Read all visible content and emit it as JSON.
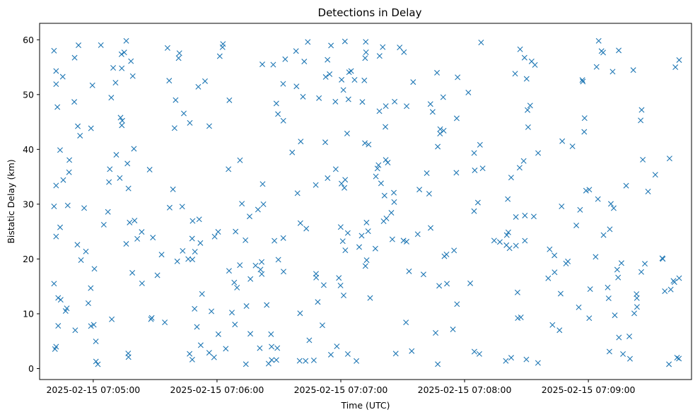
{
  "chart_data": {
    "type": "scatter",
    "title": "Detections in Delay",
    "xlabel": "Time (UTC)",
    "ylabel": "Bistatic Delay (km)",
    "x_type": "datetime",
    "xlim": [
      "2025-02-15 07:04:34",
      "2025-02-15 07:09:50"
    ],
    "ylim": [
      -2,
      63
    ],
    "x_ticks": [
      "2025-02-15 07:05:00",
      "2025-02-15 07:06:00",
      "2025-02-15 07:07:00",
      "2025-02-15 07:08:00",
      "2025-02-15 07:09:00"
    ],
    "y_ticks": [
      0,
      10,
      20,
      30,
      40,
      50,
      60
    ],
    "grid": false,
    "legend": "none",
    "marker": "x",
    "color": "#1f77b4",
    "points_count": 400,
    "sample_points": [
      {
        "t": "2025-02-15 07:04:41",
        "y": 58.0
      },
      {
        "t": "2025-02-15 07:04:42",
        "y": 54.3
      },
      {
        "t": "2025-02-15 07:04:42",
        "y": 51.9
      },
      {
        "t": "2025-02-15 07:04:42",
        "y": 33.4
      },
      {
        "t": "2025-02-15 07:04:41",
        "y": 29.6
      },
      {
        "t": "2025-02-15 07:04:42",
        "y": 24.1
      },
      {
        "t": "2025-02-15 07:04:41",
        "y": 15.5
      },
      {
        "t": "2025-02-15 07:04:43",
        "y": 12.9
      },
      {
        "t": "2025-02-15 07:04:43",
        "y": 7.8
      },
      {
        "t": "2025-02-15 07:04:42",
        "y": 4.0
      },
      {
        "t": "2025-02-15 07:05:16",
        "y": 59.8
      },
      {
        "t": "2025-02-15 07:05:36",
        "y": 58.5
      },
      {
        "t": "2025-02-15 07:06:44",
        "y": 59.6
      },
      {
        "t": "2025-02-15 07:07:02",
        "y": 59.7
      },
      {
        "t": "2025-02-15 07:07:05",
        "y": 54.3
      },
      {
        "t": "2025-02-15 07:08:08",
        "y": 59.5
      },
      {
        "t": "2025-02-15 07:09:05",
        "y": 59.8
      },
      {
        "t": "2025-02-15 07:06:14",
        "y": 0.8
      },
      {
        "t": "2025-02-15 07:06:25",
        "y": 0.9
      },
      {
        "t": "2025-02-15 07:07:47",
        "y": 0.8
      },
      {
        "t": "2025-02-15 07:08:20",
        "y": 1.4
      },
      {
        "t": "2025-02-15 07:09:43",
        "y": 2.0
      },
      {
        "t": "2025-02-15 07:09:44",
        "y": 56.3
      },
      {
        "t": "2025-02-15 07:09:44",
        "y": 16.5
      },
      {
        "t": "2025-02-15 07:06:39",
        "y": 32.0
      },
      {
        "t": "2025-02-15 07:06:48",
        "y": 17.3
      },
      {
        "t": "2025-02-15 07:07:47",
        "y": 40.5
      },
      {
        "t": "2025-02-15 07:08:58",
        "y": 43.2
      }
    ]
  }
}
